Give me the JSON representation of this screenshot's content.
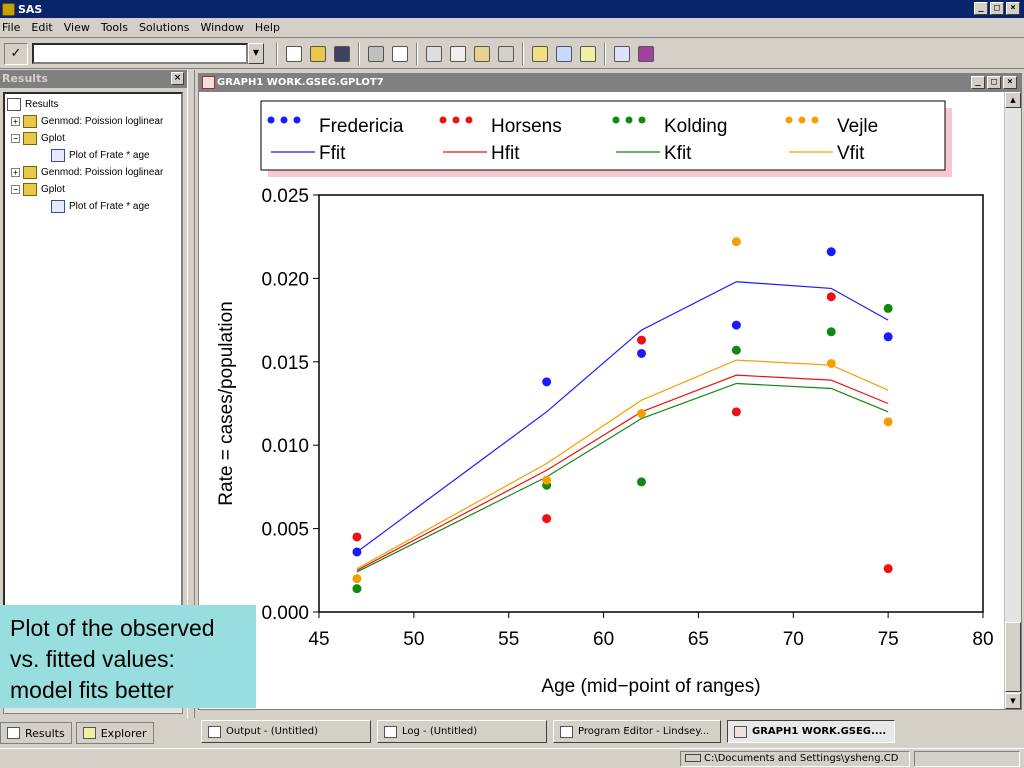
{
  "app": {
    "title": "SAS"
  },
  "menu": [
    "File",
    "Edit",
    "View",
    "Tools",
    "Solutions",
    "Window",
    "Help"
  ],
  "toolbar": {
    "check_label": "✓",
    "command_value": ""
  },
  "results": {
    "title": "Results",
    "tree": [
      {
        "label": "Results",
        "level": 0,
        "icon": "results-icon"
      },
      {
        "label": "Genmod:  Poission loglinear",
        "level": 1,
        "expander": "+",
        "icon": "folder-icon"
      },
      {
        "label": "Gplot",
        "level": 1,
        "expander": "−",
        "icon": "folder-icon"
      },
      {
        "label": "Plot of Frate * age",
        "level": 2,
        "icon": "graph-icon"
      },
      {
        "label": "Genmod:  Poission loglinear",
        "level": 1,
        "expander": "+",
        "icon": "folder-icon"
      },
      {
        "label": "Gplot",
        "level": 1,
        "expander": "−",
        "icon": "folder-icon"
      },
      {
        "label": "Plot of Frate * age",
        "level": 2,
        "icon": "graph-icon"
      }
    ],
    "tabs": [
      "Results",
      "Explorer"
    ]
  },
  "graph_window": {
    "title": "GRAPH1  WORK.GSEG.GPLOT7"
  },
  "taskbar": [
    "Output - (Untitled)",
    "Log - (Untitled)",
    "Program Editor - Lindsey...",
    "GRAPH1  WORK.GSEG...."
  ],
  "status": {
    "path": "C:\\Documents and Settings\\ysheng.CD"
  },
  "caption": {
    "line1": "Plot of the observed",
    "line2": "vs. fitted values:",
    "line3": "model fits better"
  },
  "colors": {
    "Fredericia": "#1a1aff",
    "Horsens": "#ee1111",
    "Kolding": "#118811",
    "Vejle": "#f5a000"
  },
  "chart_data": {
    "type": "scatter",
    "xlabel": "Age  (mid−point of ranges)",
    "ylabel": "Rate  =  cases/population",
    "xlim": [
      45,
      80
    ],
    "ylim": [
      0.0,
      0.025
    ],
    "xticks": [
      "45",
      "50",
      "55",
      "60",
      "65",
      "70",
      "75",
      "80"
    ],
    "yticks": [
      "0.000",
      "0.005",
      "0.010",
      "0.015",
      "0.020",
      "0.025"
    ],
    "x": [
      47,
      57,
      62,
      67,
      72,
      75
    ],
    "legend_points": [
      "Fredericia",
      "Horsens",
      "Kolding",
      "Vejle"
    ],
    "legend_lines": [
      "Ffit",
      "Hfit",
      "Kfit",
      "Vfit"
    ],
    "series": [
      {
        "name": "Fredericia",
        "kind": "points",
        "color_key": "Fredericia",
        "values": [
          0.0036,
          0.0138,
          0.0155,
          0.0172,
          0.0216,
          0.0165
        ]
      },
      {
        "name": "Horsens",
        "kind": "points",
        "color_key": "Horsens",
        "values": [
          0.0045,
          0.0056,
          0.0163,
          0.012,
          0.0189,
          0.0026
        ]
      },
      {
        "name": "Kolding",
        "kind": "points",
        "color_key": "Kolding",
        "values": [
          0.0014,
          0.0076,
          0.0078,
          0.0157,
          0.0168,
          0.0182
        ]
      },
      {
        "name": "Vejle",
        "kind": "points",
        "color_key": "Vejle",
        "values": [
          0.002,
          0.0079,
          0.0119,
          0.0222,
          0.0149,
          0.0114
        ]
      },
      {
        "name": "Ffit",
        "kind": "line",
        "color_key": "Fredericia",
        "values": [
          0.0036,
          0.012,
          0.0169,
          0.0198,
          0.0194,
          0.0175
        ]
      },
      {
        "name": "Hfit",
        "kind": "line",
        "color_key": "Horsens",
        "values": [
          0.0025,
          0.0085,
          0.012,
          0.0142,
          0.0139,
          0.0125
        ]
      },
      {
        "name": "Kfit",
        "kind": "line",
        "color_key": "Kolding",
        "values": [
          0.0024,
          0.0081,
          0.0116,
          0.0137,
          0.0134,
          0.012
        ]
      },
      {
        "name": "Vfit",
        "kind": "line",
        "color_key": "Vejle",
        "values": [
          0.0026,
          0.0089,
          0.0127,
          0.0151,
          0.0148,
          0.0133
        ]
      }
    ]
  }
}
